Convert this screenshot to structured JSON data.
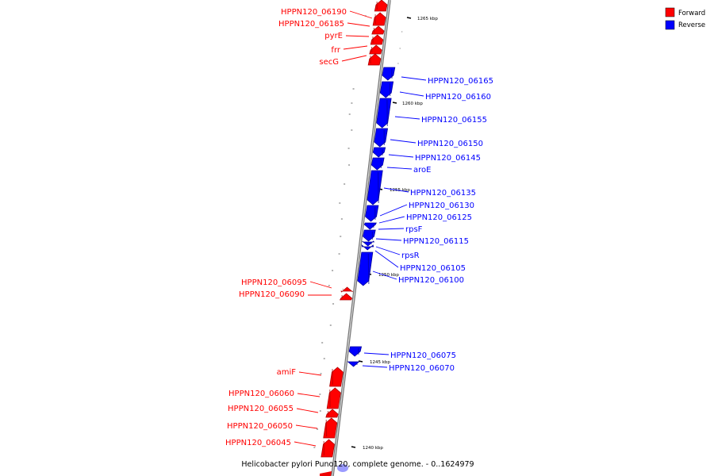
{
  "caption": "Helicobacter pylori Puno120, complete genome. - 0..1624979",
  "legend": {
    "forward_label": "Forward",
    "reverse_label": "Reverse",
    "forward_color": "#ff0000",
    "reverse_color": "#0000ff"
  },
  "kbp_labels": [
    "1265 kbp",
    "1260 kbp",
    "1255 kbp",
    "1250 kbp",
    "1245 kbp",
    "1240 kbp"
  ],
  "forward_genes": [
    "HPPN120_06190",
    "HPPN120_06185",
    "pyrE",
    "frr",
    "secG",
    "HPPN120_06095",
    "HPPN120_06090",
    "amiF",
    "HPPN120_06060",
    "HPPN120_06055",
    "HPPN120_06050",
    "HPPN120_06045"
  ],
  "reverse_genes": [
    "HPPN120_06165",
    "HPPN120_06160",
    "HPPN120_06155",
    "HPPN120_06150",
    "HPPN120_06145",
    "aroE",
    "HPPN120_06135",
    "HPPN120_06130",
    "HPPN120_06125",
    "rpsF",
    "HPPN120_06115",
    "rpsR",
    "HPPN120_06105",
    "HPPN120_06100",
    "HPPN120_06075",
    "HPPN120_06070"
  ]
}
